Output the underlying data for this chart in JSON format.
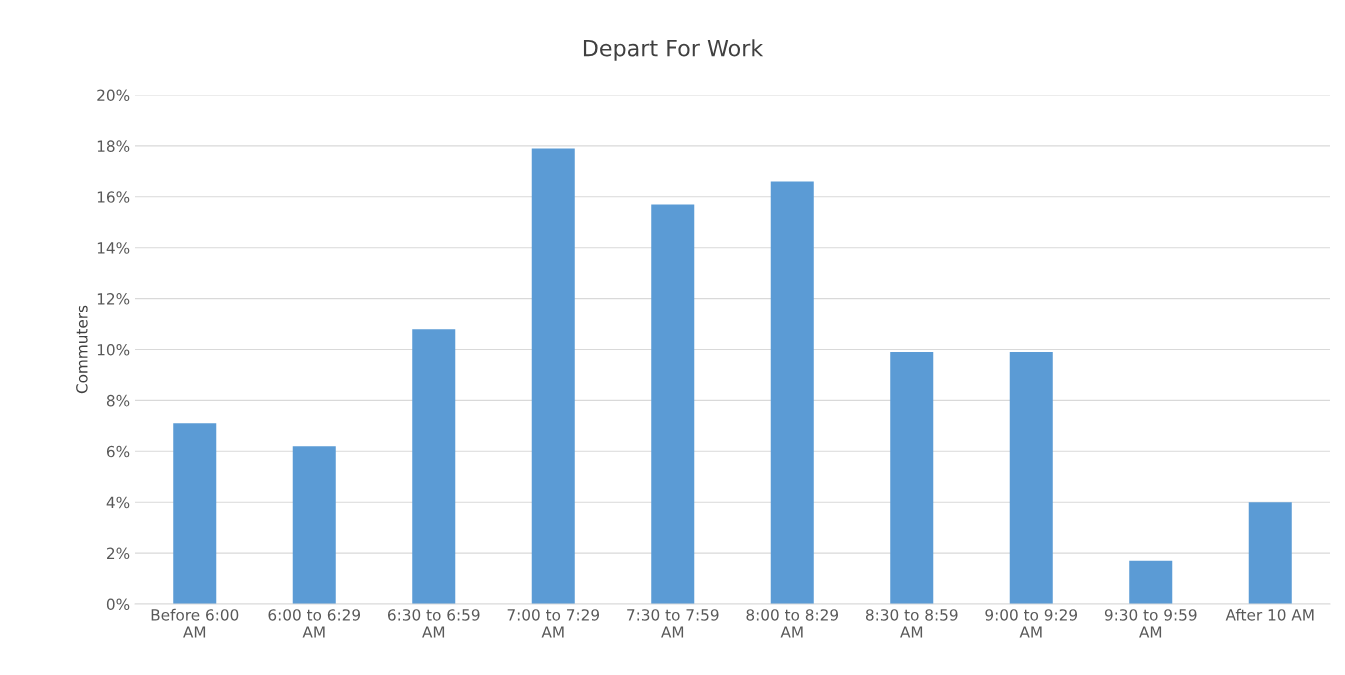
{
  "chart_data": {
    "type": "bar",
    "title": "Depart For Work",
    "ylabel": "Commuters",
    "categories": [
      "Before 6:00\nAM",
      "6:00 to 6:29\nAM",
      "6:30 to 6:59\nAM",
      "7:00 to 7:29\nAM",
      "7:30 to 7:59\nAM",
      "8:00 to 8:29\nAM",
      "8:30 to 8:59\nAM",
      "9:00 to 9:29\nAM",
      "9:30 to 9:59\nAM",
      "After 10 AM"
    ],
    "values": [
      7.1,
      6.2,
      10.8,
      17.9,
      15.7,
      16.6,
      9.9,
      9.9,
      1.7,
      4.0
    ],
    "color": "#5b9bd5",
    "ylim": [
      0,
      20
    ],
    "yticks": [
      {
        "value": 0,
        "label": "0%"
      },
      {
        "value": 2,
        "label": "2%"
      },
      {
        "value": 4,
        "label": "4%"
      },
      {
        "value": 6,
        "label": "6%"
      },
      {
        "value": 8,
        "label": "8%"
      },
      {
        "value": 10,
        "label": "10%"
      },
      {
        "value": 12,
        "label": "12%"
      },
      {
        "value": 14,
        "label": "14%"
      },
      {
        "value": 16,
        "label": "16%"
      },
      {
        "value": 18,
        "label": "18%"
      },
      {
        "value": 20,
        "label": "20%"
      }
    ],
    "grid": "y"
  }
}
